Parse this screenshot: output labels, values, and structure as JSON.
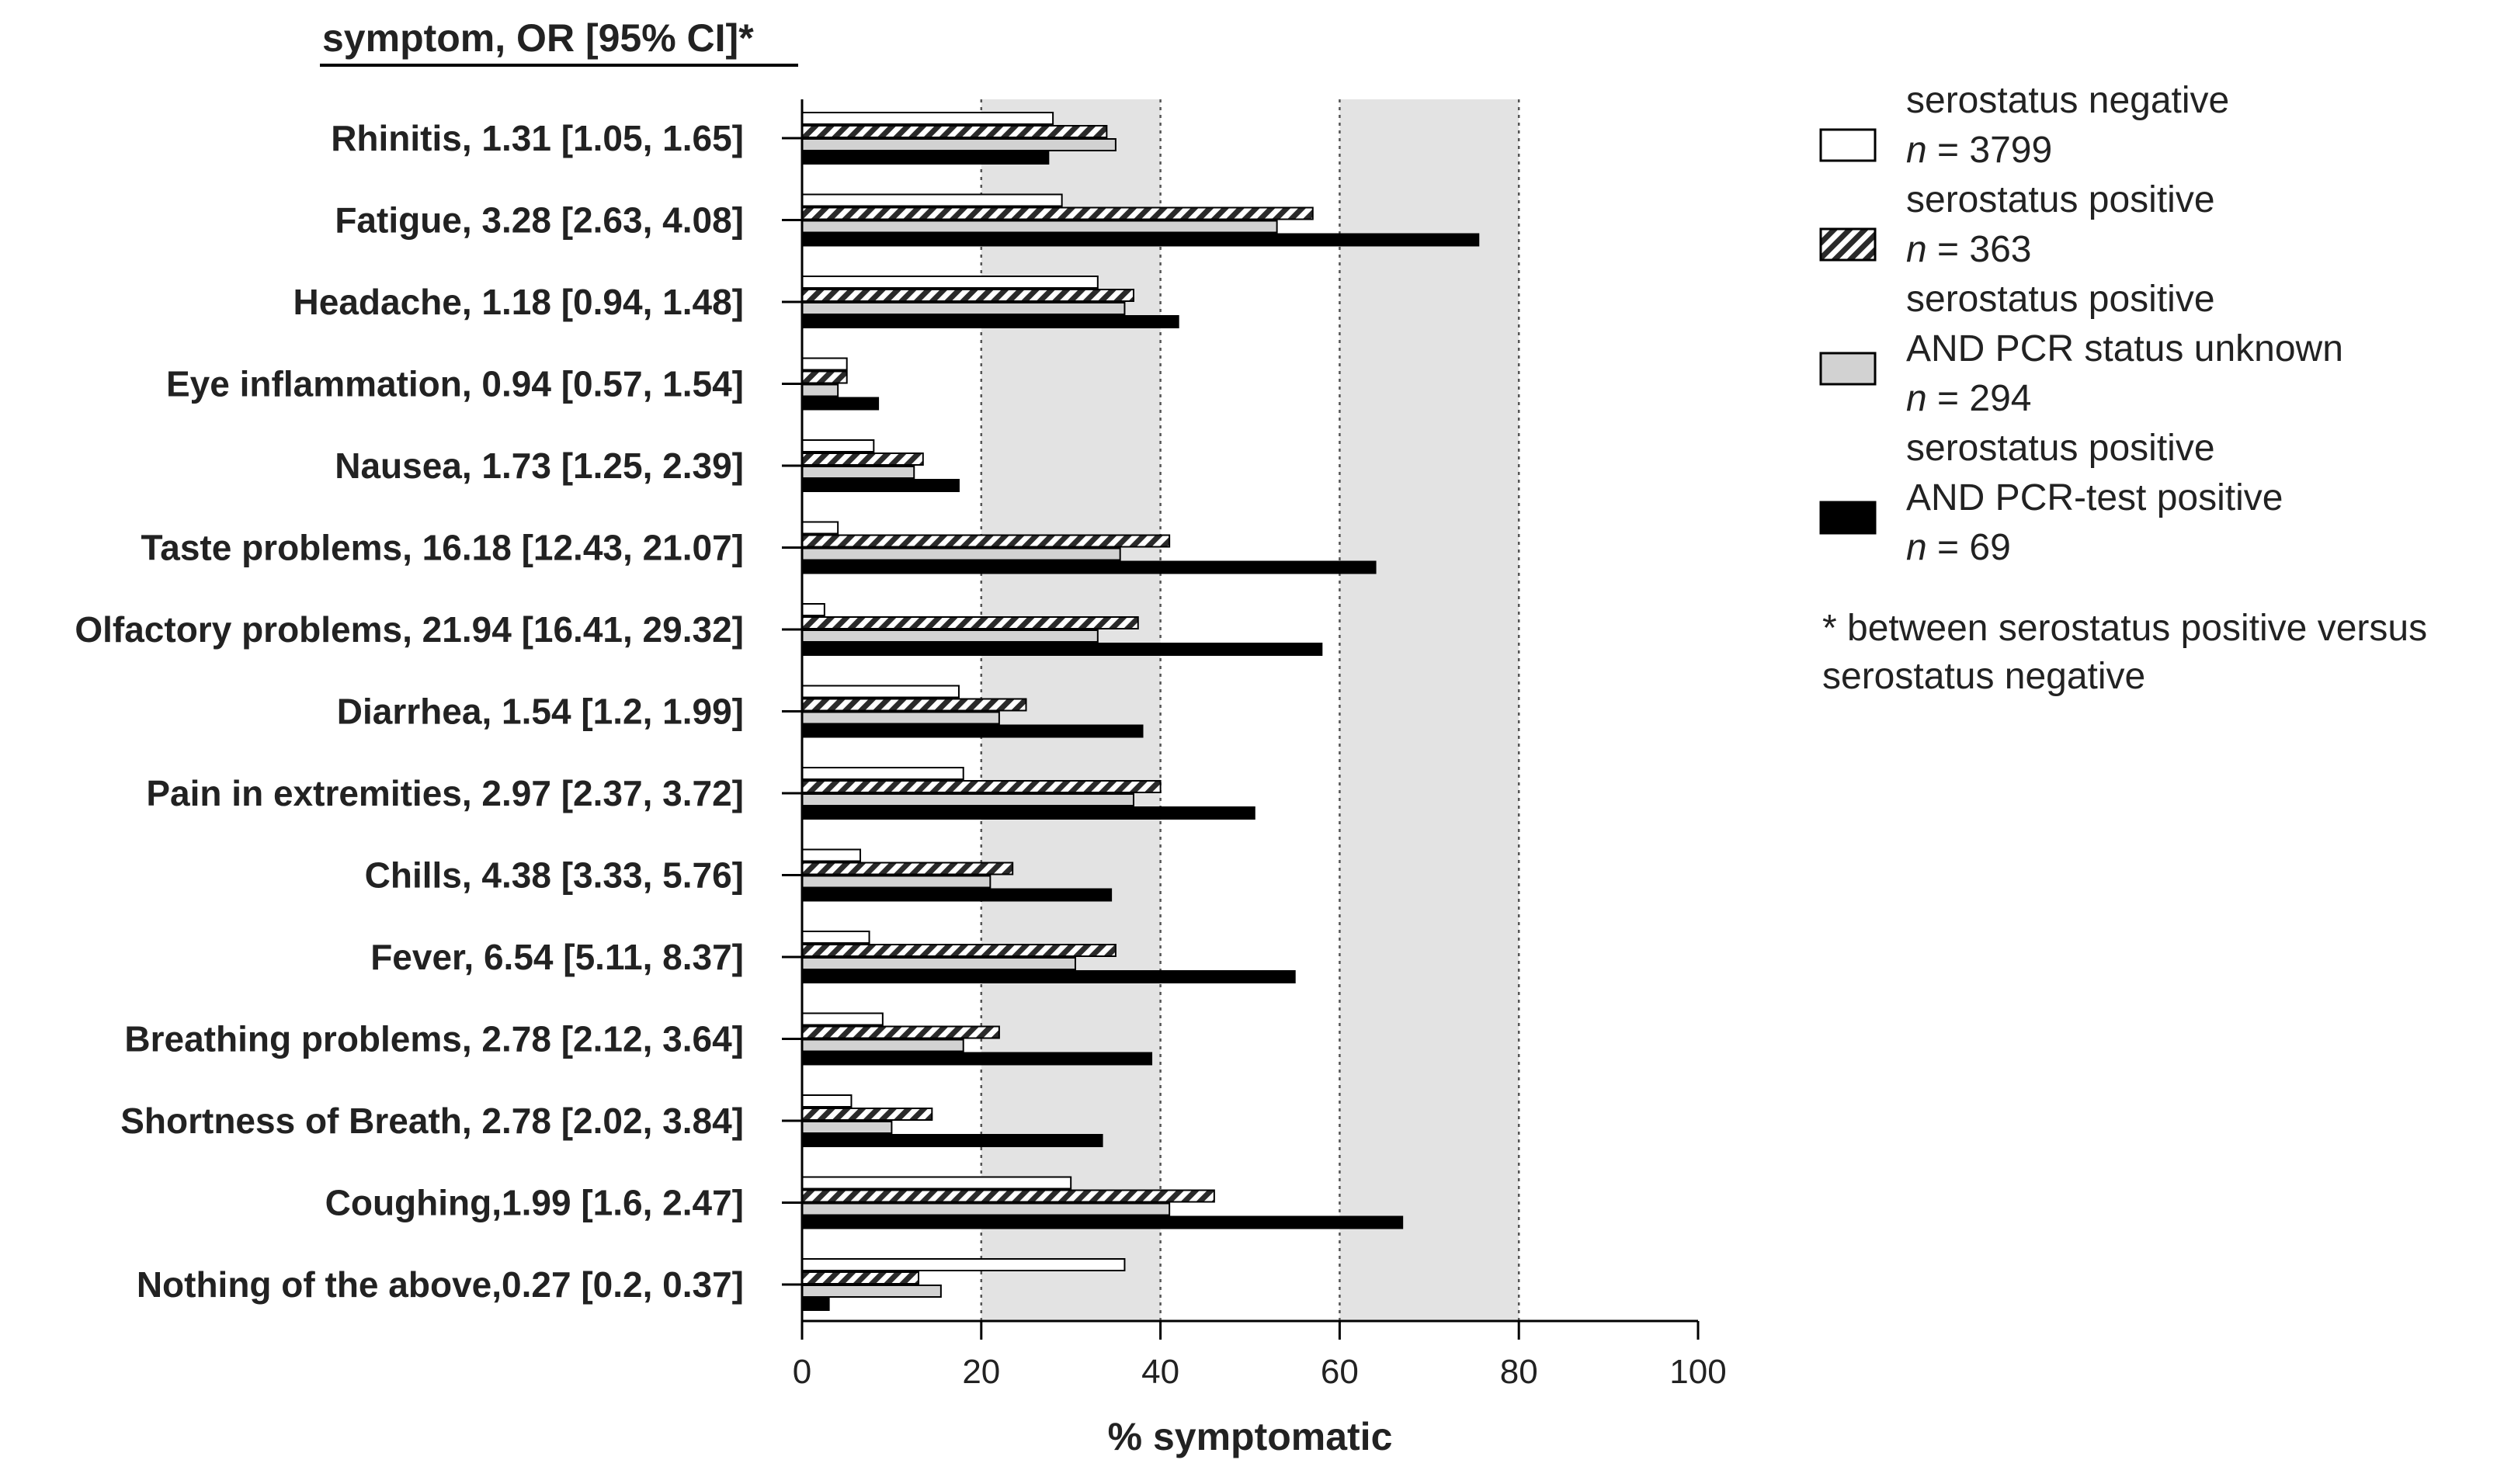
{
  "chart_data": {
    "type": "bar",
    "orientation": "horizontal",
    "header": "symptom, OR [95% CI]*",
    "xlabel": "% symptomatic",
    "xlim": [
      0,
      100
    ],
    "xticks": [
      0,
      20,
      40,
      60,
      80,
      100
    ],
    "shaded_bands": [
      [
        20,
        40
      ],
      [
        60,
        80
      ]
    ],
    "categories": [
      "Rhinitis, 1.31 [1.05, 1.65]",
      "Fatigue, 3.28 [2.63, 4.08]",
      "Headache, 1.18 [0.94, 1.48]",
      "Eye inflammation, 0.94 [0.57, 1.54]",
      "Nausea, 1.73 [1.25, 2.39]",
      "Taste problems, 16.18 [12.43, 21.07]",
      "Olfactory problems, 21.94 [16.41, 29.32]",
      "Diarrhea, 1.54 [1.2, 1.99]",
      "Pain in extremities, 2.97 [2.37, 3.72]",
      "Chills, 4.38 [3.33, 5.76]",
      "Fever, 6.54 [5.11, 8.37]",
      "Breathing problems, 2.78 [2.12, 3.64]",
      "Shortness of Breath, 2.78 [2.02, 3.84]",
      "Coughing,1.99 [1.6, 2.47]",
      "Nothing of the above,0.27 [0.2, 0.37]"
    ],
    "series": [
      {
        "name": "serostatus negative",
        "n": "n = 3799",
        "style": "white",
        "values": [
          28,
          29,
          33,
          5,
          8,
          4,
          2.5,
          17.5,
          18,
          6.5,
          7.5,
          9,
          5.5,
          30,
          36
        ]
      },
      {
        "name": "serostatus positive",
        "n": "n = 363",
        "style": "hatched",
        "values": [
          34,
          57,
          37,
          5,
          13.5,
          41,
          37.5,
          25,
          40,
          23.5,
          35,
          22,
          14.5,
          46,
          13
        ]
      },
      {
        "name": "serostatus positive AND PCR status unknown",
        "n": "n = 294",
        "style": "gray",
        "values": [
          35,
          53,
          36,
          4,
          12.5,
          35.5,
          33,
          22,
          37,
          21,
          30.5,
          18,
          10,
          41,
          15.5
        ]
      },
      {
        "name": "serostatus positive AND PCR-test positive",
        "n": "n = 69",
        "style": "black",
        "values": [
          27.5,
          75.5,
          42,
          8.5,
          17.5,
          64,
          58,
          38,
          50.5,
          34.5,
          55,
          39,
          33.5,
          67,
          3
        ]
      }
    ],
    "legend": [
      {
        "lines": [
          "serostatus negative"
        ],
        "n_prefix": "n",
        "n_suffix": " = 3799",
        "style": "white"
      },
      {
        "lines": [
          "serostatus positive"
        ],
        "n_prefix": "n",
        "n_suffix": " = 363",
        "style": "hatched"
      },
      {
        "lines": [
          "serostatus positive",
          "AND PCR status unknown"
        ],
        "n_prefix": "n",
        "n_suffix": " = 294",
        "style": "gray"
      },
      {
        "lines": [
          "serostatus positive",
          "AND PCR-test positive"
        ],
        "n_prefix": "n",
        "n_suffix": " = 69",
        "style": "black"
      }
    ],
    "footnote": [
      "* between serostatus positive versus",
      "serostatus negative"
    ]
  }
}
